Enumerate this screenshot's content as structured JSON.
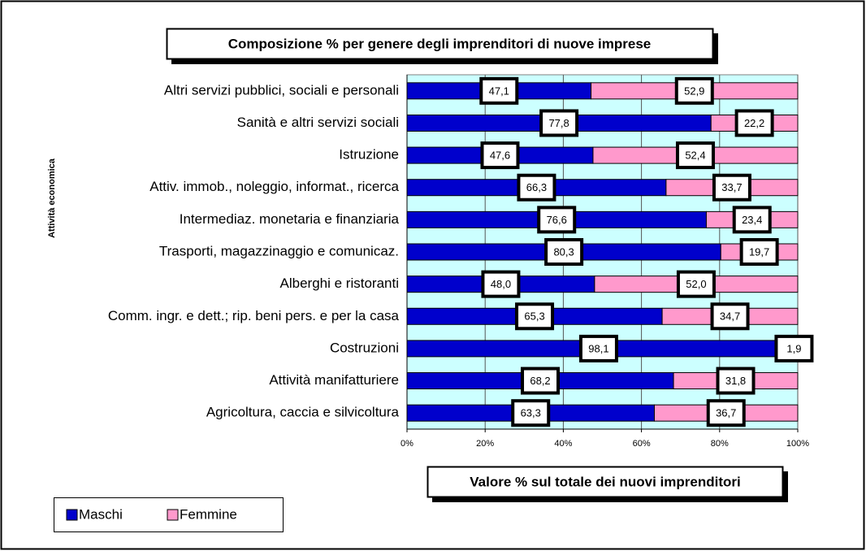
{
  "chart_data": {
    "type": "stacked-barh",
    "title": "Composizione % per genere degli imprenditori di nuove imprese",
    "x_label": "Valore % sul totale dei nuovi imprenditori",
    "y_label": "Attività economica",
    "categories": [
      "Altri servizi pubblici, sociali e personali",
      "Sanità e altri servizi sociali",
      "Istruzione",
      "Attiv. immob., noleggio, informat., ricerca",
      "Intermediaz. monetaria e finanziaria",
      "Trasporti, magazzinaggio e comunicaz.",
      "Alberghi e ristoranti",
      "Comm. ingr. e dett.; rip. beni pers. e per la casa",
      "Costruzioni",
      "Attività manifatturiere",
      "Agricoltura, caccia e silvicoltura"
    ],
    "series": [
      {
        "name": "Maschi",
        "color": "#0000cc",
        "values": [
          47.1,
          77.8,
          47.6,
          66.3,
          76.6,
          80.3,
          48.0,
          65.3,
          98.1,
          68.2,
          63.3
        ],
        "value_labels": [
          "47,1",
          "77,8",
          "47,6",
          "66,3",
          "76,6",
          "80,3",
          "48,0",
          "65,3",
          "98,1",
          "68,2",
          "63,3"
        ]
      },
      {
        "name": "Femmine",
        "color": "#ff99cc",
        "values": [
          52.9,
          22.2,
          52.4,
          33.7,
          23.4,
          19.7,
          52.0,
          34.7,
          1.9,
          31.8,
          36.7
        ],
        "value_labels": [
          "52,9",
          "22,2",
          "52,4",
          "33,7",
          "23,4",
          "19,7",
          "52,0",
          "34,7",
          "1,9",
          "31,8",
          "36,7"
        ]
      }
    ],
    "xlim": [
      0,
      100
    ],
    "xticks": [
      {
        "value": 0,
        "label": "0%"
      },
      {
        "value": 20,
        "label": "20%"
      },
      {
        "value": 40,
        "label": "40%"
      },
      {
        "value": 60,
        "label": "60%"
      },
      {
        "value": 80,
        "label": "80%"
      },
      {
        "value": 100,
        "label": "100%"
      }
    ],
    "grid": true
  }
}
